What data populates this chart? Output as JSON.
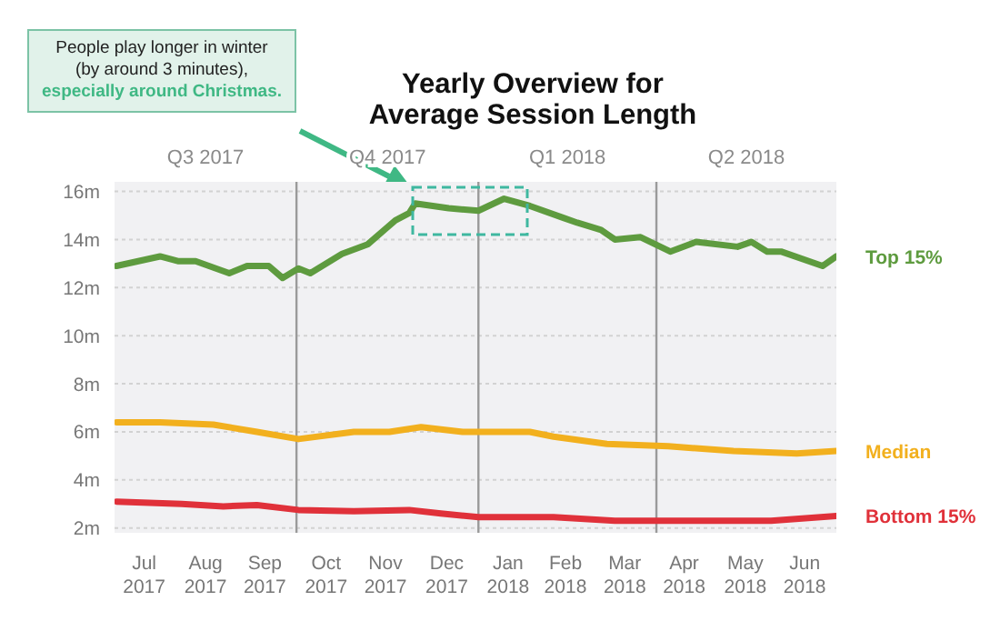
{
  "chart_data": {
    "type": "line",
    "title": "Yearly Overview for\nAverage Session Length",
    "annotations": [
      "People play longer in winter\n(by around 3 minutes),\nespecially around Christmas."
    ],
    "series": [
      {
        "name": "Top 15%",
        "color": "#5e9b3f",
        "x": [
          "2017-07-02",
          "2017-07-24",
          "2017-08-02",
          "2017-08-11",
          "2017-08-28",
          "2017-09-06",
          "2017-09-17",
          "2017-09-24",
          "2017-10-02",
          "2017-10-08",
          "2017-10-24",
          "2017-11-06",
          "2017-11-20",
          "2017-11-27",
          "2017-11-30",
          "2017-12-17",
          "2018-01-01",
          "2018-01-14",
          "2018-01-27",
          "2018-02-13",
          "2018-02-20",
          "2018-03-04",
          "2018-03-11",
          "2018-03-24",
          "2018-04-08",
          "2018-04-21",
          "2018-05-12",
          "2018-05-19",
          "2018-05-27",
          "2018-06-03",
          "2018-06-24",
          "2018-07-01"
        ],
        "values": [
          12.9,
          13.3,
          13.1,
          13.1,
          12.6,
          12.9,
          12.9,
          12.4,
          12.8,
          12.6,
          13.4,
          13.8,
          14.8,
          15.1,
          15.5,
          15.3,
          15.2,
          15.7,
          15.4,
          14.9,
          14.7,
          14.4,
          14.0,
          14.1,
          13.5,
          13.9,
          13.7,
          13.9,
          13.5,
          13.5,
          12.9,
          13.3
        ]
      },
      {
        "name": "Median",
        "color": "#f2b01e",
        "x": [
          "2017-07-02",
          "2017-07-24",
          "2017-08-20",
          "2017-09-11",
          "2017-10-02",
          "2017-10-30",
          "2017-11-17",
          "2017-12-03",
          "2017-12-24",
          "2018-01-09",
          "2018-01-27",
          "2018-02-08",
          "2018-03-07",
          "2018-04-07",
          "2018-05-10",
          "2018-06-11",
          "2018-07-01"
        ],
        "values": [
          6.4,
          6.4,
          6.3,
          6.0,
          5.7,
          6.0,
          6.0,
          6.2,
          6.0,
          6.0,
          6.0,
          5.8,
          5.5,
          5.4,
          5.2,
          5.1,
          5.2
        ]
      },
      {
        "name": "Bottom 15%",
        "color": "#e0313a",
        "x": [
          "2017-07-02",
          "2017-08-04",
          "2017-08-25",
          "2017-09-11",
          "2017-10-02",
          "2017-10-30",
          "2017-11-27",
          "2017-12-13",
          "2018-01-01",
          "2018-02-08",
          "2018-03-11",
          "2018-04-12",
          "2018-05-10",
          "2018-05-29",
          "2018-07-01"
        ],
        "values": [
          3.1,
          3.0,
          2.9,
          2.95,
          2.75,
          2.7,
          2.75,
          2.6,
          2.45,
          2.45,
          2.3,
          2.3,
          2.3,
          2.3,
          2.5
        ]
      }
    ],
    "xlim": [
      "2017-07-01",
      "2018-07-01"
    ],
    "xticks": [
      {
        "value": "2017-07-16",
        "label": "Jul 2017"
      },
      {
        "value": "2017-08-16",
        "label": "Aug 2017"
      },
      {
        "value": "2017-09-15",
        "label": "Sep 2017"
      },
      {
        "value": "2017-10-16",
        "label": "Oct 2017"
      },
      {
        "value": "2017-11-15",
        "label": "Nov 2017"
      },
      {
        "value": "2017-12-16",
        "label": "Dec 2017"
      },
      {
        "value": "2018-01-16",
        "label": "Jan 2018"
      },
      {
        "value": "2018-02-14",
        "label": "Feb 2018"
      },
      {
        "value": "2018-03-16",
        "label": "Mar 2018"
      },
      {
        "value": "2018-04-15",
        "label": "Apr 2018"
      },
      {
        "value": "2018-05-16",
        "label": "May 2018"
      },
      {
        "value": "2018-06-15",
        "label": "Jun 2018"
      }
    ],
    "ylim": [
      1.8,
      16.4
    ],
    "yticks": [
      {
        "value": 2,
        "label": "2m"
      },
      {
        "value": 4,
        "label": "4m"
      },
      {
        "value": 6,
        "label": "6m"
      },
      {
        "value": 8,
        "label": "8m"
      },
      {
        "value": 10,
        "label": "10m"
      },
      {
        "value": 12,
        "label": "12m"
      },
      {
        "value": 14,
        "label": "14m"
      },
      {
        "value": 16,
        "label": "16m"
      }
    ],
    "grid": "y",
    "marker": "none",
    "line_style": "solid",
    "ref_lines": [
      {
        "axis": "x",
        "value": "2017-10-01",
        "color": "#9a9a9a"
      },
      {
        "axis": "x",
        "value": "2018-01-01",
        "color": "#9a9a9a"
      },
      {
        "axis": "x",
        "value": "2018-04-01",
        "color": "#9a9a9a"
      }
    ],
    "bands": [
      {
        "axis": "x",
        "from": "2017-07-01",
        "to": "2017-10-01",
        "label": "Q3 2017",
        "color": "#f1f1f3"
      },
      {
        "axis": "x",
        "from": "2017-10-01",
        "to": "2018-01-01",
        "label": "Q4 2017",
        "color": "#f1f1f3"
      },
      {
        "axis": "x",
        "from": "2018-01-01",
        "to": "2018-04-01",
        "label": "Q1 2018",
        "color": "#f1f1f3"
      },
      {
        "axis": "x",
        "from": "2018-04-01",
        "to": "2018-07-01",
        "label": "Q2 2018",
        "color": "#f1f1f3"
      }
    ]
  }
}
